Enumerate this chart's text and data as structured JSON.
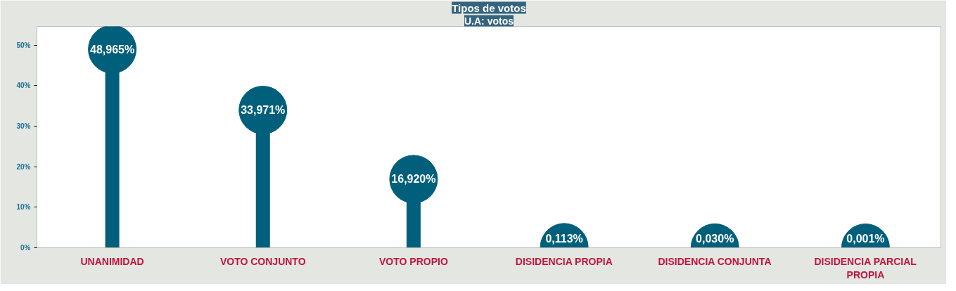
{
  "chart_data": {
    "type": "lollipop",
    "title": "Tipos de votos",
    "subtitle": "U.A: votos",
    "categories": [
      "UNANIMIDAD",
      "VOTO CONJUNTO",
      "VOTO PROPIO",
      "DISIDENCIA PROPIA",
      "DISIDENCIA CONJUNTA",
      "DISIDENCIA PARCIAL PROPIA"
    ],
    "values": [
      48.965,
      33.971,
      16.92,
      0.113,
      0.03,
      0.001
    ],
    "value_labels": [
      "48,965%",
      "33,971%",
      "16,920%",
      "0,113%",
      "0,030%",
      "0,001%"
    ],
    "color": "#005f7b",
    "ylim": [
      0,
      54.6
    ],
    "yticks": [
      {
        "value": 0,
        "label": "0%"
      },
      {
        "value": 10,
        "label": "10%"
      },
      {
        "value": 20,
        "label": "20%"
      },
      {
        "value": 30,
        "label": "30%"
      },
      {
        "value": 40,
        "label": "40%"
      },
      {
        "value": 50,
        "label": "50%"
      }
    ],
    "grid": false
  }
}
